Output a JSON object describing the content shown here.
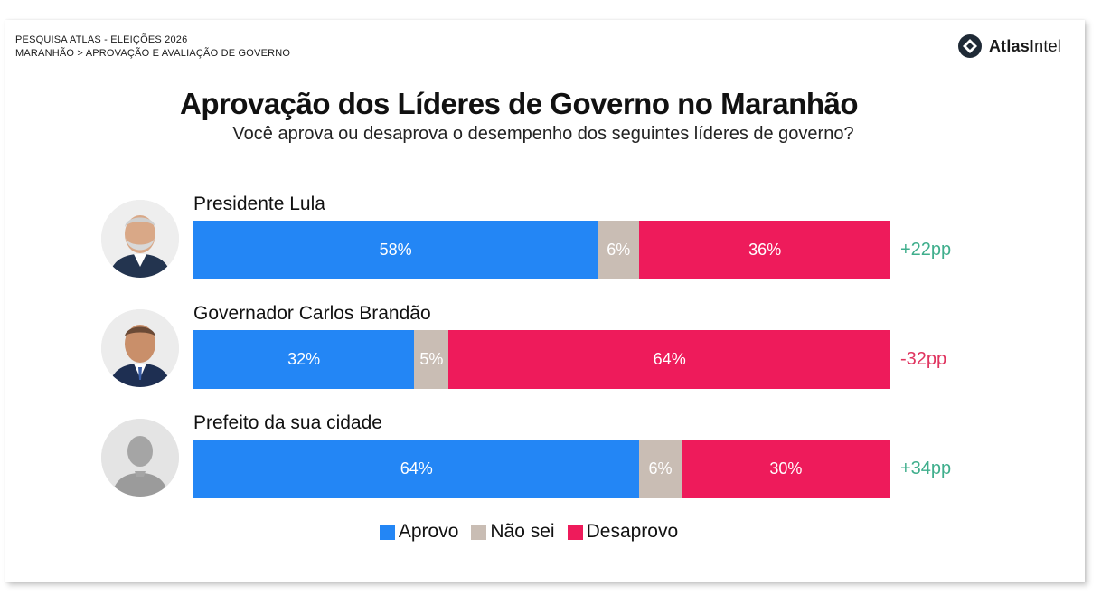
{
  "header": {
    "line1": "PESQUISA ATLAS - ELEIÇÕES 2026",
    "line2": "MARANHÃO > APROVAÇÃO E AVALIAÇÃO DE GOVERNO"
  },
  "logo": {
    "bold": "Atlas",
    "light": "Intel",
    "icon": "atlas-logo-icon"
  },
  "colors": {
    "approve": "#2386f5",
    "unsure": "#c9bdb4",
    "disapprove": "#ee1b5b",
    "net_positive": "#3fae8c",
    "net_negative": "#e0345f"
  },
  "chart_data": {
    "type": "bar",
    "orientation": "horizontal",
    "stacked": true,
    "title": "Aprovação dos Líderes de Governo no Maranhão",
    "subtitle": "Você aprova ou desaprova o desempenho dos seguintes líderes de governo?",
    "categories": [
      "Presidente Lula",
      "Governador Carlos Brandão",
      "Prefeito da sua cidade"
    ],
    "series": [
      {
        "name": "Aprovo",
        "values": [
          58,
          32,
          64
        ],
        "labels": [
          "58%",
          "32%",
          "64%"
        ]
      },
      {
        "name": "Não sei",
        "values": [
          6,
          5,
          6
        ],
        "labels": [
          "6%",
          "5%",
          "6%"
        ]
      },
      {
        "name": "Desaprovo",
        "values": [
          36,
          64,
          30
        ],
        "labels": [
          "36%",
          "64%",
          "30%"
        ]
      }
    ],
    "net": [
      {
        "value": 22,
        "label": "+22pp"
      },
      {
        "value": -32,
        "label": "-32pp"
      },
      {
        "value": 34,
        "label": "+34pp"
      }
    ],
    "legend_position": "bottom-center",
    "grid": false
  }
}
